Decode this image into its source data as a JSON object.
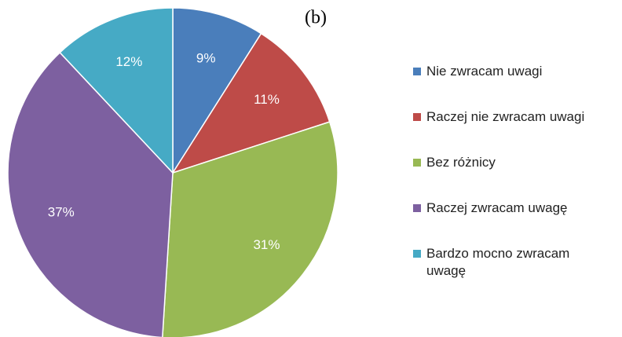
{
  "chart_data": {
    "type": "pie",
    "title": "(b)",
    "categories": [
      "Nie zwracam uwagi",
      "Raczej nie zwracam uwagi",
      "Bez różnicy",
      "Raczej zwracam uwagę",
      "Bardzo mocno zwracam uwagę"
    ],
    "values": [
      9,
      11,
      31,
      37,
      12
    ],
    "value_labels": [
      "9%",
      "11%",
      "31%",
      "37%",
      "12%"
    ],
    "colors": [
      "#4a7ebb",
      "#be4b48",
      "#98b954",
      "#7d60a0",
      "#46aac5"
    ],
    "legend": "right"
  }
}
